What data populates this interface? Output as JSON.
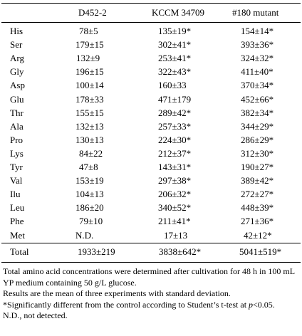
{
  "table": {
    "columns": [
      "",
      "D452-2",
      "KCCM 34709",
      "#180 mutant"
    ],
    "rows": [
      {
        "name": "His",
        "d452": "78±5",
        "kccm": "135±19*",
        "mutant": "154±14*"
      },
      {
        "name": "Ser",
        "d452": "179±15",
        "kccm": "302±41*",
        "mutant": "393±36*"
      },
      {
        "name": "Arg",
        "d452": "132±9",
        "kccm": "253±41*",
        "mutant": "324±32*"
      },
      {
        "name": "Gly",
        "d452": "196±15",
        "kccm": "322±43*",
        "mutant": "411±40*"
      },
      {
        "name": "Asp",
        "d452": "100±14",
        "kccm": "160±33",
        "mutant": "370±34*"
      },
      {
        "name": "Glu",
        "d452": "178±33",
        "kccm": "471±179",
        "mutant": "452±66*"
      },
      {
        "name": "Thr",
        "d452": "155±15",
        "kccm": "289±42*",
        "mutant": "382±34*"
      },
      {
        "name": "Ala",
        "d452": "132±13",
        "kccm": "257±33*",
        "mutant": "344±29*"
      },
      {
        "name": "Pro",
        "d452": "130±13",
        "kccm": "224±30*",
        "mutant": "286±29*"
      },
      {
        "name": "Lys",
        "d452": "84±22",
        "kccm": "212±37*",
        "mutant": "312±30*"
      },
      {
        "name": "Tyr",
        "d452": "47±8",
        "kccm": "143±31*",
        "mutant": "190±27*"
      },
      {
        "name": "Val",
        "d452": "153±19",
        "kccm": "297±38*",
        "mutant": "389±42*"
      },
      {
        "name": "Ilu",
        "d452": "104±13",
        "kccm": "206±32*",
        "mutant": "272±27*"
      },
      {
        "name": "Leu",
        "d452": "186±20",
        "kccm": "340±52*",
        "mutant": "448±39*"
      },
      {
        "name": "Phe",
        "d452": "79±10",
        "kccm": "211±41*",
        "mutant": "271±36*"
      },
      {
        "name": "Met",
        "d452": "N.D.",
        "kccm": "17±13",
        "mutant": "42±12*"
      }
    ],
    "total": {
      "name": "Total",
      "d452": "1933±219",
      "kccm": "3838±642*",
      "mutant": "5041±519*"
    }
  },
  "footnotes": {
    "line1": "Total amino acid concentrations were determined after cultivation for 48 h in 100 mL YP medium containing 50 g/L glucose.",
    "line2": "Results are the mean of three experiments with standard deviation.",
    "line3_main": "*Significantly different from the control according to Student’s t-test at ",
    "line3_p": "p",
    "line3_end": "<0.05.",
    "line4": "N.D., not detected."
  }
}
